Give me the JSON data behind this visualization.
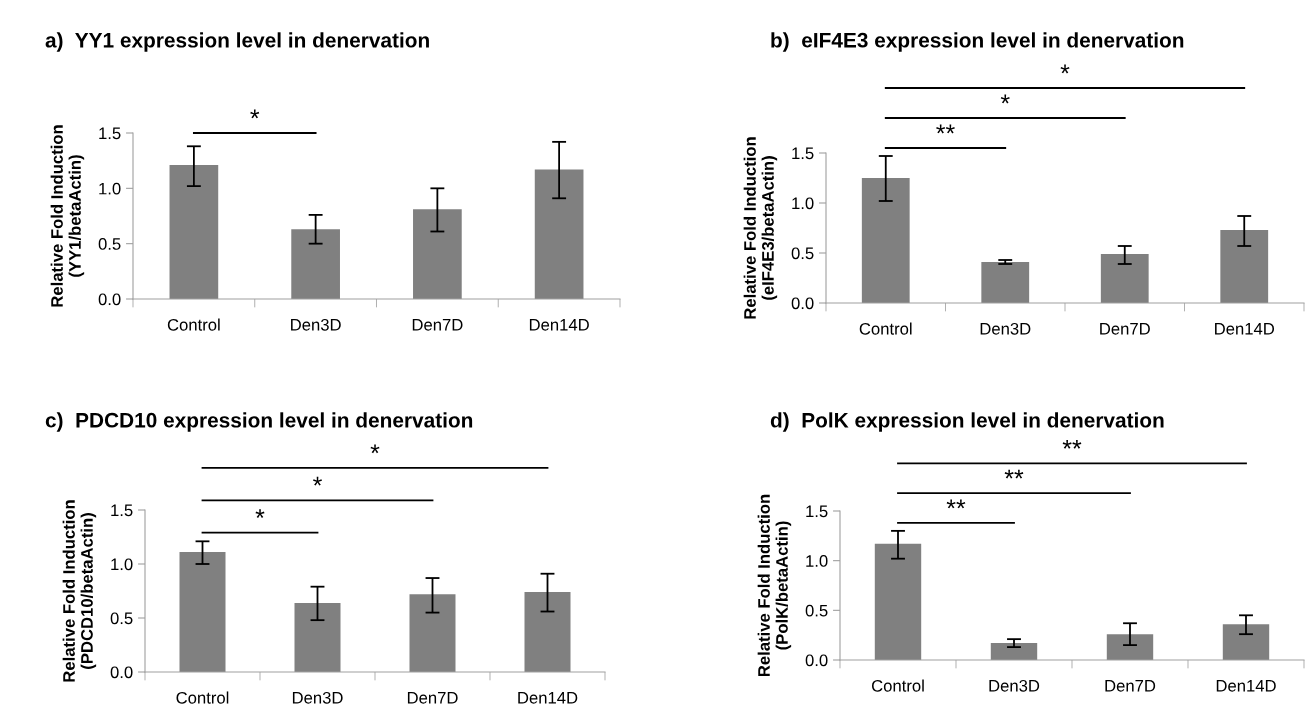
{
  "chart_data": [
    {
      "type": "bar",
      "title": "a)  YY1 expression level in denervation",
      "ylabel": "Relative Fold Induction\n(YY1/betaActin)",
      "categories": [
        "Control",
        "Den3D",
        "Den7D",
        "Den14D"
      ],
      "values": [
        1.21,
        0.63,
        0.81,
        1.17
      ],
      "errors": [
        [
          1.02,
          1.38
        ],
        [
          0.5,
          0.76
        ],
        [
          0.61,
          1.0
        ],
        [
          0.91,
          1.42
        ]
      ],
      "color": "#808080",
      "ylim": [
        0,
        1.5
      ],
      "yticks": [
        {
          "value": 0,
          "label": "0.0"
        },
        {
          "value": 0.5,
          "label": "0.5"
        },
        {
          "value": 1.0,
          "label": "1.0"
        },
        {
          "value": 1.5,
          "label": "1.5"
        }
      ],
      "grid": false,
      "legend": false,
      "annotations": [
        "*"
      ]
    },
    {
      "type": "bar",
      "title": "b)  eIF4E3 expression level in denervation",
      "ylabel": "Relative Fold Induction\n(eIF4E3/betaActin)",
      "categories": [
        "Control",
        "Den3D",
        "Den7D",
        "Den14D"
      ],
      "values": [
        1.25,
        0.41,
        0.49,
        0.73
      ],
      "errors": [
        [
          1.02,
          1.47
        ],
        [
          0.39,
          0.43
        ],
        [
          0.39,
          0.57
        ],
        [
          0.57,
          0.87
        ]
      ],
      "color": "#808080",
      "ylim": [
        0,
        1.5
      ],
      "yticks": [
        {
          "value": 0,
          "label": "0.0"
        },
        {
          "value": 0.5,
          "label": "0.5"
        },
        {
          "value": 1.0,
          "label": "1.0"
        },
        {
          "value": 1.5,
          "label": "1.5"
        }
      ],
      "grid": false,
      "legend": false,
      "annotations": [
        "**",
        "*",
        "*"
      ]
    },
    {
      "type": "bar",
      "title": "c)  PDCD10 expression level in denervation",
      "ylabel": "Relative Fold Induction\n(PDCD10/betaActin)",
      "categories": [
        "Control",
        "Den3D",
        "Den7D",
        "Den14D"
      ],
      "values": [
        1.11,
        0.64,
        0.72,
        0.74
      ],
      "errors": [
        [
          1.0,
          1.21
        ],
        [
          0.48,
          0.79
        ],
        [
          0.55,
          0.87
        ],
        [
          0.56,
          0.91
        ]
      ],
      "color": "#808080",
      "ylim": [
        0,
        1.5
      ],
      "yticks": [
        {
          "value": 0,
          "label": "0.0"
        },
        {
          "value": 0.5,
          "label": "0.5"
        },
        {
          "value": 1.0,
          "label": "1.0"
        },
        {
          "value": 1.5,
          "label": "1.5"
        }
      ],
      "grid": false,
      "legend": false,
      "annotations": [
        "*",
        "*",
        "*"
      ]
    },
    {
      "type": "bar",
      "title": "d)  PolK expression level in denervation",
      "ylabel": "Relative Fold Induction\n(PolK/betaActin)",
      "categories": [
        "Control",
        "Den3D",
        "Den7D",
        "Den14D"
      ],
      "values": [
        1.17,
        0.17,
        0.26,
        0.36
      ],
      "errors": [
        [
          1.02,
          1.3
        ],
        [
          0.13,
          0.21
        ],
        [
          0.15,
          0.37
        ],
        [
          0.26,
          0.45
        ]
      ],
      "color": "#808080",
      "ylim": [
        0,
        1.5
      ],
      "yticks": [
        {
          "value": 0,
          "label": "0.0"
        },
        {
          "value": 0.5,
          "label": "0.5"
        },
        {
          "value": 1.0,
          "label": "1.0"
        },
        {
          "value": 1.5,
          "label": "1.5"
        }
      ],
      "grid": false,
      "legend": false,
      "annotations": [
        "**",
        "**",
        "**"
      ]
    }
  ]
}
